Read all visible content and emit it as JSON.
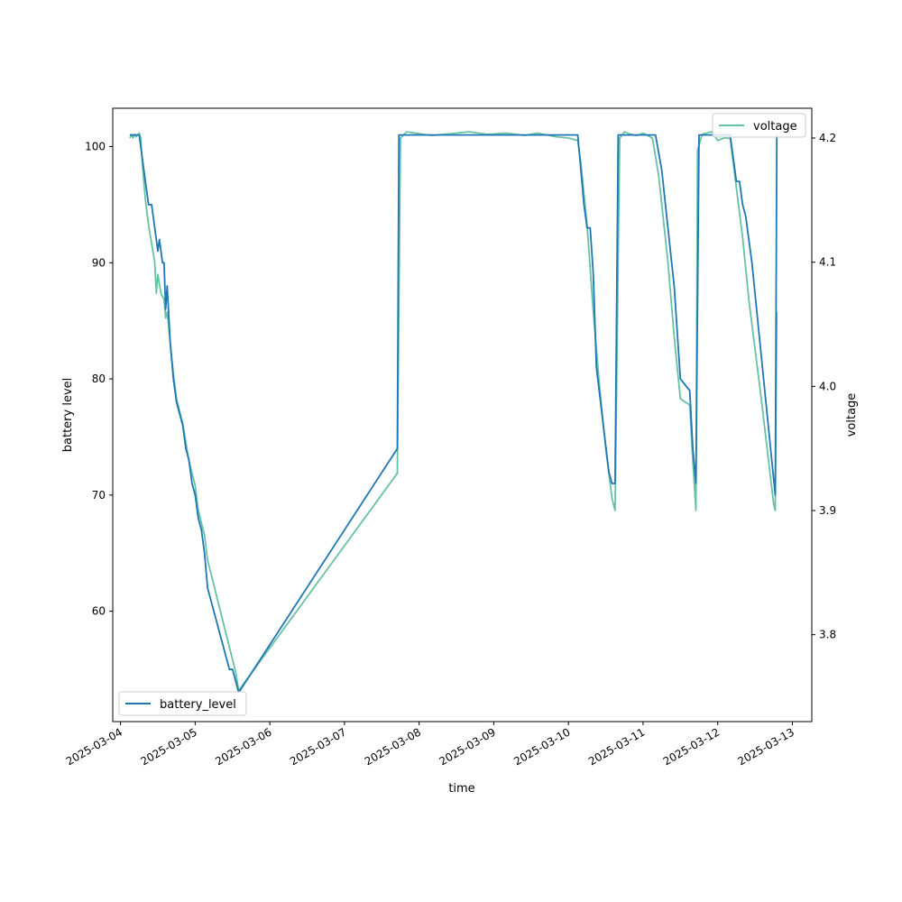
{
  "chart_data": {
    "type": "line",
    "xlabel": "time",
    "ylabel_left": "battery level",
    "ylabel_right": "voltage",
    "x_ticks": [
      "2025-03-04",
      "2025-03-05",
      "2025-03-06",
      "2025-03-07",
      "2025-03-08",
      "2025-03-09",
      "2025-03-10",
      "2025-03-11",
      "2025-03-12",
      "2025-03-13"
    ],
    "xlim": [
      "2025-03-03T21:30",
      "2025-03-13T06:15"
    ],
    "ylim_left": [
      50.5,
      103.3
    ],
    "ylim_right": [
      3.73,
      4.224
    ],
    "y_ticks_left": [
      "60",
      "70",
      "80",
      "90",
      "100"
    ],
    "y_ticks_right": [
      "3.8",
      "3.9",
      "4.0",
      "4.1",
      "4.2"
    ],
    "colors": {
      "battery_level": "#1f77b4",
      "voltage": "#66c2a5"
    },
    "legend_left": {
      "position": "lower-left",
      "label": "battery_level"
    },
    "legend_right": {
      "position": "upper-right",
      "label": "voltage"
    },
    "series": [
      {
        "name": "battery_level",
        "axis": "left",
        "points": [
          [
            "2025-03-04T03:00",
            101
          ],
          [
            "2025-03-04T06:00",
            101
          ],
          [
            "2025-03-04T07:00",
            99
          ],
          [
            "2025-03-04T08:00",
            97
          ],
          [
            "2025-03-04T09:00",
            95
          ],
          [
            "2025-03-04T10:00",
            95
          ],
          [
            "2025-03-04T11:00",
            93
          ],
          [
            "2025-03-04T12:00",
            91
          ],
          [
            "2025-03-04T12:30",
            92
          ],
          [
            "2025-03-04T13:30",
            90
          ],
          [
            "2025-03-04T14:00",
            90
          ],
          [
            "2025-03-04T14:30",
            86
          ],
          [
            "2025-03-04T15:00",
            88
          ],
          [
            "2025-03-04T16:00",
            83
          ],
          [
            "2025-03-04T17:00",
            80
          ],
          [
            "2025-03-04T18:00",
            78
          ],
          [
            "2025-03-04T19:00",
            77
          ],
          [
            "2025-03-04T20:00",
            76
          ],
          [
            "2025-03-04T21:00",
            74
          ],
          [
            "2025-03-04T22:00",
            73
          ],
          [
            "2025-03-04T23:00",
            71
          ],
          [
            "2025-03-05T00:00",
            70
          ],
          [
            "2025-03-05T01:00",
            68
          ],
          [
            "2025-03-05T02:00",
            67
          ],
          [
            "2025-03-05T03:00",
            65
          ],
          [
            "2025-03-05T04:00",
            62
          ],
          [
            "2025-03-05T05:00",
            61
          ],
          [
            "2025-03-05T06:00",
            60
          ],
          [
            "2025-03-05T07:00",
            59
          ],
          [
            "2025-03-05T08:00",
            58
          ],
          [
            "2025-03-05T09:00",
            57
          ],
          [
            "2025-03-05T10:00",
            56
          ],
          [
            "2025-03-05T11:00",
            55
          ],
          [
            "2025-03-05T12:00",
            55
          ],
          [
            "2025-03-05T13:00",
            54
          ],
          [
            "2025-03-05T14:00",
            53
          ],
          [
            "2025-03-07T17:00",
            74
          ],
          [
            "2025-03-07T17:30",
            101
          ],
          [
            "2025-03-10T03:00",
            101
          ],
          [
            "2025-03-10T04:00",
            98
          ],
          [
            "2025-03-10T05:00",
            95
          ],
          [
            "2025-03-10T06:00",
            93
          ],
          [
            "2025-03-10T07:00",
            93
          ],
          [
            "2025-03-10T08:00",
            89
          ],
          [
            "2025-03-10T09:00",
            81
          ],
          [
            "2025-03-10T13:00",
            72
          ],
          [
            "2025-03-10T14:00",
            71
          ],
          [
            "2025-03-10T15:00",
            71
          ],
          [
            "2025-03-10T16:00",
            101
          ],
          [
            "2025-03-11T04:00",
            101
          ],
          [
            "2025-03-11T06:00",
            98
          ],
          [
            "2025-03-11T10:00",
            88
          ],
          [
            "2025-03-11T12:00",
            80
          ],
          [
            "2025-03-11T15:00",
            79
          ],
          [
            "2025-03-11T16:00",
            74
          ],
          [
            "2025-03-11T17:00",
            71
          ],
          [
            "2025-03-11T18:00",
            101
          ],
          [
            "2025-03-12T04:00",
            101
          ],
          [
            "2025-03-12T05:00",
            99
          ],
          [
            "2025-03-12T06:00",
            97
          ],
          [
            "2025-03-12T07:00",
            97
          ],
          [
            "2025-03-12T08:00",
            95
          ],
          [
            "2025-03-12T09:00",
            94
          ],
          [
            "2025-03-12T11:00",
            90
          ],
          [
            "2025-03-12T18:30",
            70
          ],
          [
            "2025-03-12T19:00",
            101
          ]
        ]
      },
      {
        "name": "voltage",
        "axis": "right",
        "points": [
          [
            "2025-03-04T03:00",
            4.2
          ],
          [
            "2025-03-04T03:30",
            4.203
          ],
          [
            "2025-03-04T04:00",
            4.2
          ],
          [
            "2025-03-04T04:30",
            4.203
          ],
          [
            "2025-03-04T05:00",
            4.201
          ],
          [
            "2025-03-04T06:00",
            4.204
          ],
          [
            "2025-03-04T06:30",
            4.2
          ],
          [
            "2025-03-04T07:00",
            4.18
          ],
          [
            "2025-03-04T08:00",
            4.15
          ],
          [
            "2025-03-04T09:00",
            4.13
          ],
          [
            "2025-03-04T10:00",
            4.115
          ],
          [
            "2025-03-04T11:00",
            4.1
          ],
          [
            "2025-03-04T11:30",
            4.075
          ],
          [
            "2025-03-04T12:00",
            4.09
          ],
          [
            "2025-03-04T13:00",
            4.075
          ],
          [
            "2025-03-04T14:00",
            4.07
          ],
          [
            "2025-03-04T14:30",
            4.055
          ],
          [
            "2025-03-04T15:00",
            4.06
          ],
          [
            "2025-03-04T16:00",
            4.035
          ],
          [
            "2025-03-04T17:00",
            4.01
          ],
          [
            "2025-03-04T18:00",
            3.99
          ],
          [
            "2025-03-04T19:00",
            3.98
          ],
          [
            "2025-03-04T20:00",
            3.97
          ],
          [
            "2025-03-04T21:00",
            3.955
          ],
          [
            "2025-03-04T22:00",
            3.94
          ],
          [
            "2025-03-04T23:00",
            3.93
          ],
          [
            "2025-03-05T00:00",
            3.92
          ],
          [
            "2025-03-05T01:00",
            3.9
          ],
          [
            "2025-03-05T02:00",
            3.89
          ],
          [
            "2025-03-05T03:00",
            3.88
          ],
          [
            "2025-03-05T04:00",
            3.86
          ],
          [
            "2025-03-05T05:00",
            3.85
          ],
          [
            "2025-03-05T06:00",
            3.84
          ],
          [
            "2025-03-05T07:00",
            3.83
          ],
          [
            "2025-03-05T08:00",
            3.82
          ],
          [
            "2025-03-05T09:00",
            3.81
          ],
          [
            "2025-03-05T10:00",
            3.8
          ],
          [
            "2025-03-05T11:00",
            3.79
          ],
          [
            "2025-03-05T12:00",
            3.78
          ],
          [
            "2025-03-05T13:00",
            3.77
          ],
          [
            "2025-03-05T14:00",
            3.755
          ],
          [
            "2025-03-07T17:00",
            3.93
          ],
          [
            "2025-03-07T18:00",
            4.2
          ],
          [
            "2025-03-07T20:00",
            4.205
          ],
          [
            "2025-03-08T04:00",
            4.202
          ],
          [
            "2025-03-08T08:00",
            4.203
          ],
          [
            "2025-03-08T16:00",
            4.205
          ],
          [
            "2025-03-08T22:00",
            4.203
          ],
          [
            "2025-03-09T04:00",
            4.204
          ],
          [
            "2025-03-09T10:00",
            4.202
          ],
          [
            "2025-03-09T14:00",
            4.204
          ],
          [
            "2025-03-09T20:00",
            4.201
          ],
          [
            "2025-03-10T00:00",
            4.2
          ],
          [
            "2025-03-10T03:00",
            4.198
          ],
          [
            "2025-03-10T04:00",
            4.18
          ],
          [
            "2025-03-10T06:00",
            4.13
          ],
          [
            "2025-03-10T08:00",
            4.06
          ],
          [
            "2025-03-10T10:00",
            4.0
          ],
          [
            "2025-03-10T12:00",
            3.95
          ],
          [
            "2025-03-10T14:00",
            3.91
          ],
          [
            "2025-03-10T15:00",
            3.9
          ],
          [
            "2025-03-10T16:30",
            4.2
          ],
          [
            "2025-03-10T18:00",
            4.205
          ],
          [
            "2025-03-10T20:00",
            4.203
          ],
          [
            "2025-03-10T22:00",
            4.202
          ],
          [
            "2025-03-11T00:00",
            4.204
          ],
          [
            "2025-03-11T03:00",
            4.2
          ],
          [
            "2025-03-11T05:00",
            4.17
          ],
          [
            "2025-03-11T08:00",
            4.1
          ],
          [
            "2025-03-11T10:00",
            4.04
          ],
          [
            "2025-03-11T12:00",
            3.99
          ],
          [
            "2025-03-11T15:00",
            3.985
          ],
          [
            "2025-03-11T16:00",
            3.94
          ],
          [
            "2025-03-11T17:00",
            3.9
          ],
          [
            "2025-03-11T17:30",
            4.19
          ],
          [
            "2025-03-11T19:00",
            4.203
          ],
          [
            "2025-03-11T22:00",
            4.205
          ],
          [
            "2025-03-12T00:00",
            4.198
          ],
          [
            "2025-03-12T02:00",
            4.2
          ],
          [
            "2025-03-12T04:00",
            4.2
          ],
          [
            "2025-03-12T06:00",
            4.16
          ],
          [
            "2025-03-12T08:00",
            4.12
          ],
          [
            "2025-03-12T10:00",
            4.07
          ],
          [
            "2025-03-12T14:00",
            3.99
          ],
          [
            "2025-03-12T18:00",
            3.905
          ],
          [
            "2025-03-12T18:30",
            3.9
          ],
          [
            "2025-03-12T19:00",
            4.06
          ]
        ]
      }
    ]
  }
}
